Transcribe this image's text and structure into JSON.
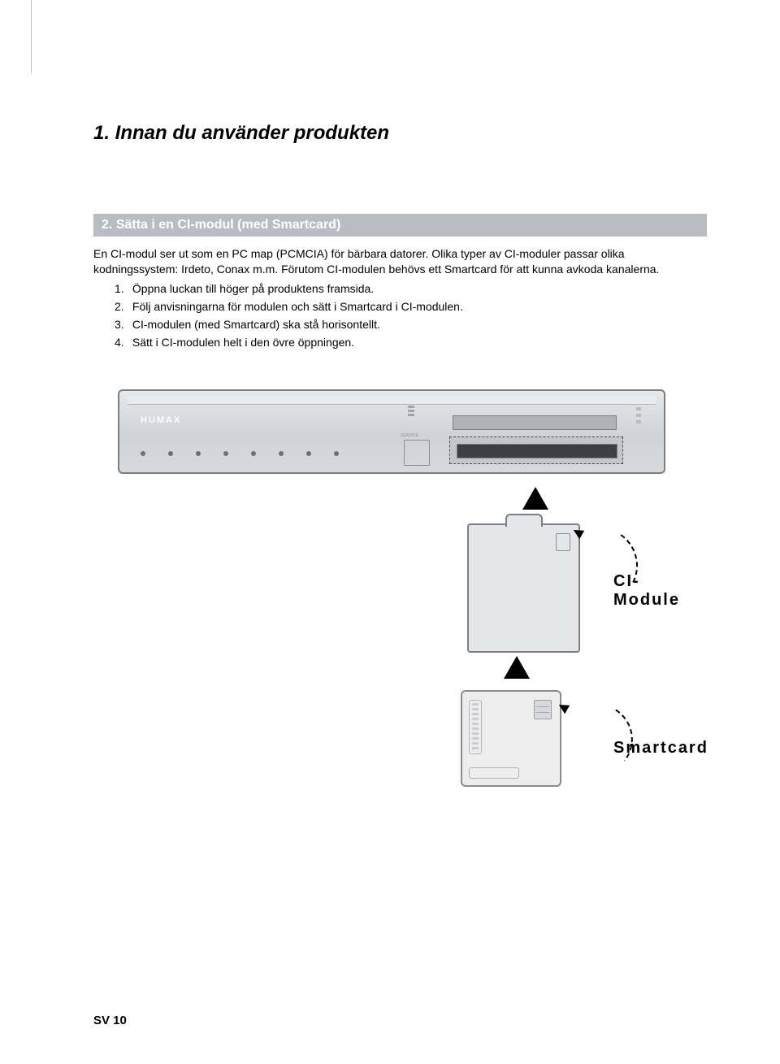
{
  "page": {
    "title": "1. Innan du använder produkten",
    "footer": "SV 10"
  },
  "section": {
    "bar": "2. Sätta i en CI-modul (med Smartcard)",
    "para1": "En CI-modul ser ut som en PC map (PCMCIA) för bärbara datorer. Olika typer av CI-moduler passar olika kodningssystem: Irdeto, Conax m.m. Förutom CI-modulen behövs ett Smartcard för att kunna avkoda kanalerna.",
    "steps": [
      "Öppna luckan till höger på produktens framsida.",
      "Följ anvisningarna för modulen och sätt i Smartcard i CI-modulen.",
      "CI-modulen (med Smartcard) ska stå horisontellt.",
      "Sätt i CI-modulen helt i den övre öppningen."
    ],
    "step_numbers": [
      "1.",
      "2.",
      "3.",
      "4."
    ]
  },
  "figure": {
    "brand": "HUMAX",
    "usb_label": "SERVICE",
    "callout_ci": "CI-Module",
    "callout_smartcard": "Smartcard",
    "colors": {
      "device_border": "#7b7f85",
      "device_fill_top": "#e6e8eb",
      "device_fill_bottom": "#d6d9dc",
      "slot_dark": "#3c3f43",
      "module_fill": "#e4e6e9",
      "card_fill": "#ededee",
      "arrow": "#000000",
      "section_bar_bg": "#b9bdc2",
      "section_bar_text": "#ffffff"
    }
  }
}
